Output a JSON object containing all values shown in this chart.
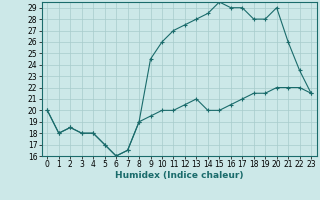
{
  "title": "",
  "xlabel": "Humidex (Indice chaleur)",
  "ylabel": "",
  "background_color": "#cce8e8",
  "grid_color": "#a8cccc",
  "line_color": "#1a6b6b",
  "xlim": [
    -0.5,
    23.5
  ],
  "ylim": [
    16,
    29.5
  ],
  "yticks": [
    16,
    17,
    18,
    19,
    20,
    21,
    22,
    23,
    24,
    25,
    26,
    27,
    28,
    29
  ],
  "xticks": [
    0,
    1,
    2,
    3,
    4,
    5,
    6,
    7,
    8,
    9,
    10,
    11,
    12,
    13,
    14,
    15,
    16,
    17,
    18,
    19,
    20,
    21,
    22,
    23
  ],
  "line1_x": [
    0,
    1,
    2,
    3,
    4,
    5,
    6,
    7,
    8,
    9,
    10,
    11,
    12,
    13,
    14,
    15,
    16,
    17,
    18,
    19,
    20,
    21,
    22,
    23
  ],
  "line1_y": [
    20,
    18,
    18.5,
    18,
    18,
    17,
    16,
    16.5,
    19,
    19.5,
    20,
    20,
    20.5,
    21,
    20,
    20,
    20.5,
    21,
    21.5,
    21.5,
    22,
    22,
    22,
    21.5
  ],
  "line2_x": [
    0,
    1,
    2,
    3,
    4,
    5,
    6,
    7,
    8,
    9,
    10,
    11,
    12,
    13,
    14,
    15,
    16,
    17,
    18,
    19,
    20,
    21,
    22,
    23
  ],
  "line2_y": [
    20,
    18,
    18.5,
    18,
    18,
    17,
    16,
    16.5,
    19,
    24.5,
    26,
    27,
    27.5,
    28,
    28.5,
    29.5,
    29,
    29,
    28,
    28,
    29,
    26,
    23.5,
    21.5
  ],
  "tick_fontsize": 5.5,
  "xlabel_fontsize": 6.5
}
